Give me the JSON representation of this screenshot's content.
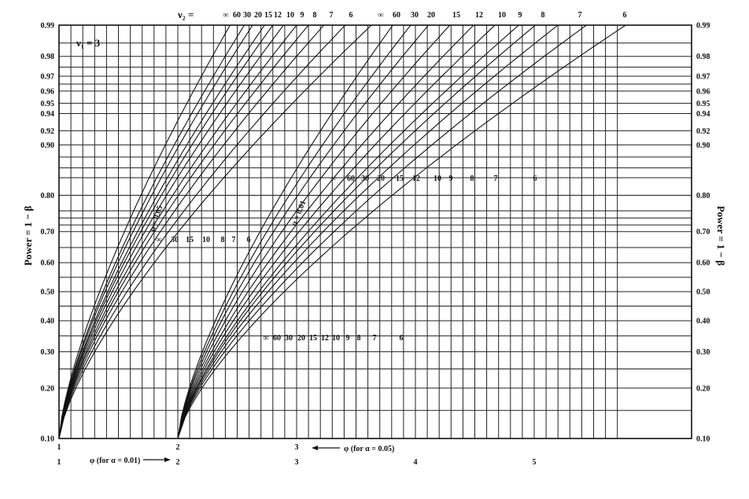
{
  "chart_data": {
    "type": "line",
    "title": "",
    "nu1_label": "ν₁ = 3",
    "nu2_prefix": "ν₂ =",
    "ylabel_left": "Power = 1 − β",
    "ylabel_right": "Power = 1 − β",
    "y_scale": "probit",
    "ylim": [
      0.1,
      0.99
    ],
    "y_ticks": [
      0.1,
      0.2,
      0.3,
      0.4,
      0.5,
      0.6,
      0.7,
      0.8,
      0.9,
      0.92,
      0.94,
      0.95,
      0.96,
      0.97,
      0.98,
      0.99
    ],
    "y_tick_labels": [
      "0.10",
      "0.20",
      "0.30",
      "0.40",
      "0.50",
      "0.60",
      "0.70",
      "0.80",
      "0.90",
      "0.92",
      "0.94",
      "0.95",
      "0.96",
      "0.97",
      "0.98",
      "0.99"
    ],
    "x_axis_alpha_005": {
      "label": "φ (for α = 0.05)",
      "ticks": [
        1,
        2,
        3,
        4,
        5
      ],
      "xlim": [
        1,
        5.7
      ]
    },
    "x_axis_alpha_001": {
      "label": "φ (for α = 0.01)",
      "ticks": [
        1,
        2,
        3
      ],
      "xlim": [
        1,
        3
      ]
    },
    "alpha_labels": [
      "α = 0.05",
      "α = 0.01"
    ],
    "series_labels": {
      "alpha_005_top": [
        "∞",
        "60",
        "30",
        "20",
        "15",
        "12",
        "10",
        "9",
        "8",
        "7",
        "6"
      ],
      "alpha_005_mid": [
        "∞",
        "30",
        "15",
        "10",
        "8",
        "7",
        "6"
      ],
      "alpha_001_top": [
        "∞",
        "60",
        "30",
        "20",
        "15",
        "12",
        "10",
        "9",
        "8",
        "7",
        "6"
      ],
      "alpha_001_mid": [
        "∞",
        "60",
        "30",
        "20",
        "15",
        "12",
        "10",
        "9",
        "8",
        "7",
        "6"
      ],
      "alpha_001_low": [
        "∞",
        "60",
        "30",
        "20",
        "15",
        "12",
        "10",
        "9",
        "8",
        "7",
        "6"
      ]
    },
    "series": [
      {
        "name": "α = 0.05, ν₂ = ∞",
        "alpha": 0.05,
        "phi_at_0.10": 1.0,
        "phi_at_0.99": 2.44
      },
      {
        "name": "α = 0.05, ν₂ = 60",
        "alpha": 0.05,
        "phi_at_0.10": 1.0,
        "phi_at_0.99": 2.56
      },
      {
        "name": "α = 0.05, ν₂ = 30",
        "alpha": 0.05,
        "phi_at_0.10": 1.0,
        "phi_at_0.99": 2.63
      },
      {
        "name": "α = 0.05, ν₂ = 20",
        "alpha": 0.05,
        "phi_at_0.10": 1.0,
        "phi_at_0.99": 2.73
      },
      {
        "name": "α = 0.05, ν₂ = 15",
        "alpha": 0.05,
        "phi_at_0.10": 1.0,
        "phi_at_0.99": 2.8
      },
      {
        "name": "α = 0.05, ν₂ = 12",
        "alpha": 0.05,
        "phi_at_0.10": 1.0,
        "phi_at_0.99": 2.89
      },
      {
        "name": "α = 0.05, ν₂ = 10",
        "alpha": 0.05,
        "phi_at_0.10": 1.0,
        "phi_at_0.99": 3.0
      },
      {
        "name": "α = 0.05, ν₂ = 9",
        "alpha": 0.05,
        "phi_at_0.10": 1.0,
        "phi_at_0.99": 3.1
      },
      {
        "name": "α = 0.05, ν₂ = 8",
        "alpha": 0.05,
        "phi_at_0.10": 1.0,
        "phi_at_0.99": 3.23
      },
      {
        "name": "α = 0.05, ν₂ = 7",
        "alpha": 0.05,
        "phi_at_0.10": 1.0,
        "phi_at_0.99": 3.41
      },
      {
        "name": "α = 0.05, ν₂ = 6",
        "alpha": 0.05,
        "phi_at_0.10": 1.0,
        "phi_at_0.99": 3.63
      },
      {
        "name": "α = 0.01, ν₂ = ∞",
        "alpha": 0.01,
        "phi_at_0.10": 2.0,
        "phi_at_0.99": 3.81
      },
      {
        "name": "α = 0.01, ν₂ = 60",
        "alpha": 0.01,
        "phi_at_0.10": 2.0,
        "phi_at_0.99": 3.96
      },
      {
        "name": "α = 0.01, ν₂ = 30",
        "alpha": 0.01,
        "phi_at_0.10": 2.0,
        "phi_at_0.99": 4.11
      },
      {
        "name": "α = 0.01, ν₂ = 20",
        "alpha": 0.01,
        "phi_at_0.10": 2.0,
        "phi_at_0.99": 4.29
      },
      {
        "name": "α = 0.01, ν₂ = 15",
        "alpha": 0.01,
        "phi_at_0.10": 2.0,
        "phi_at_0.99": 4.49
      },
      {
        "name": "α = 0.01, ν₂ = 12",
        "alpha": 0.01,
        "phi_at_0.10": 2.0,
        "phi_at_0.99": 4.67
      },
      {
        "name": "α = 0.01, ν₂ = 10",
        "alpha": 0.01,
        "phi_at_0.10": 2.0,
        "phi_at_0.99": 4.87
      },
      {
        "name": "α = 0.01, ν₂ = 9",
        "alpha": 0.01,
        "phi_at_0.10": 2.0,
        "phi_at_0.99": 5.01
      },
      {
        "name": "α = 0.01, ν₂ = 8",
        "alpha": 0.01,
        "phi_at_0.10": 2.0,
        "phi_at_0.99": 5.2
      },
      {
        "name": "α = 0.01, ν₂ = 7",
        "alpha": 0.01,
        "phi_at_0.10": 2.0,
        "phi_at_0.99": 5.44
      },
      {
        "name": "α = 0.01, ν₂ = 6",
        "alpha": 0.01,
        "phi_at_0.10": 2.0,
        "phi_at_0.99": 5.77
      }
    ],
    "grid": true,
    "legend": "none"
  }
}
